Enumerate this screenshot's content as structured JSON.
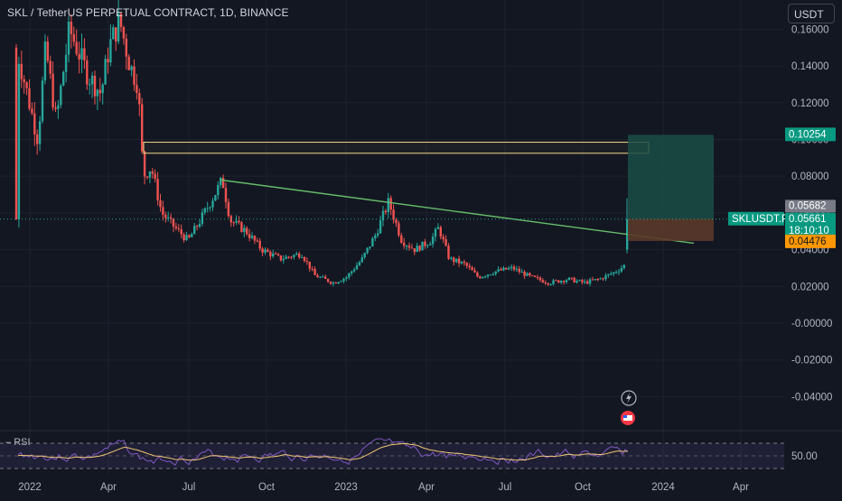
{
  "header": {
    "title": "SKL / TetherUS PERPETUAL CONTRACT, 1D, BINANCE",
    "currency": "USDT"
  },
  "price_axis": {
    "ticks": [
      "0.16000",
      "0.14000",
      "0.12000",
      "0.10000",
      "0.08000",
      "0.06000",
      "0.04000",
      "0.02000",
      "-0.00000",
      "-0.02000",
      "-0.04000"
    ]
  },
  "time_axis": {
    "ticks": [
      "2022",
      "Apr",
      "Jul",
      "Oct",
      "2023",
      "Apr",
      "Jul",
      "Oct",
      "2024",
      "Apr"
    ]
  },
  "price_labels": {
    "target": "0.10254",
    "current_top": "0.05682",
    "symbol": "SKLUSDT.P",
    "last_price": "0.05661",
    "countdown": "18:10:10",
    "stop": "0.04476"
  },
  "rsi": {
    "label": "RSI",
    "value_label": "50.00"
  },
  "colors": {
    "background": "#131722",
    "candle_up": "#26a69a",
    "candle_down": "#ef5350",
    "trendline": "#66bb6a",
    "resistance_box": "#f5d98b",
    "profit_zone": "#1b4d45",
    "loss_zone": "#5b3a2a",
    "rsi_line": "#7e57c2",
    "rsi_ma": "#f0c674"
  },
  "chart_data": {
    "type": "candlestick",
    "title": "SKL / TetherUS PERPETUAL CONTRACT, 1D, BINANCE",
    "unit": "USDT",
    "ylim": [
      -0.05,
      0.17
    ],
    "approx_closes": [
      {
        "x": "2022-01",
        "y": 0.14
      },
      {
        "x": "2022-02",
        "y": 0.12
      },
      {
        "x": "2022-03",
        "y": 0.125
      },
      {
        "x": "2022-04",
        "y": 0.155
      },
      {
        "x": "2022-05",
        "y": 0.075
      },
      {
        "x": "2022-06",
        "y": 0.047
      },
      {
        "x": "2022-07",
        "y": 0.055
      },
      {
        "x": "2022-08",
        "y": 0.07
      },
      {
        "x": "2022-09",
        "y": 0.045
      },
      {
        "x": "2022-10",
        "y": 0.035
      },
      {
        "x": "2022-11",
        "y": 0.028
      },
      {
        "x": "2022-12",
        "y": 0.022
      },
      {
        "x": "2023-01",
        "y": 0.03
      },
      {
        "x": "2023-02",
        "y": 0.06
      },
      {
        "x": "2023-03",
        "y": 0.042
      },
      {
        "x": "2023-04",
        "y": 0.045
      },
      {
        "x": "2023-05",
        "y": 0.033
      },
      {
        "x": "2023-06",
        "y": 0.026
      },
      {
        "x": "2023-07",
        "y": 0.028
      },
      {
        "x": "2023-08",
        "y": 0.025
      },
      {
        "x": "2023-09",
        "y": 0.022
      },
      {
        "x": "2023-10",
        "y": 0.023
      },
      {
        "x": "2023-11",
        "y": 0.035
      },
      {
        "x": "2023-11-late",
        "y": 0.0566
      }
    ],
    "trendline": [
      {
        "x": "2022-08",
        "y": 0.078
      },
      {
        "x": "2024-01",
        "y": 0.045
      }
    ],
    "resistance_zone": [
      0.0925,
      0.0985
    ],
    "position": {
      "entry": 0.05682,
      "target": 0.10254,
      "stop": 0.04476
    },
    "rsi_reference": 50
  }
}
